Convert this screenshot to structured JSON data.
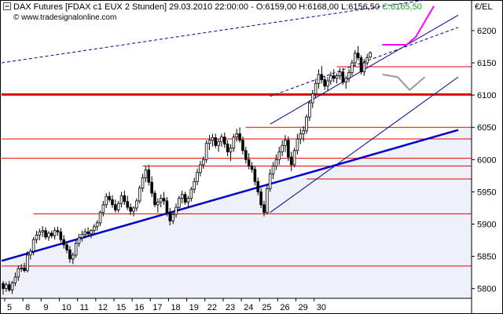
{
  "header": {
    "instrument": "DAX Futures [FDAX c1 EUX  2 Stunden]",
    "date_time": "29.03.2010 22:00:00",
    "ohlc": "- O:6159,00 H:6168,00 L:6156,50",
    "last": "C:6165,50",
    "source": "© www.tradesignalonline.com",
    "unit": "€/EL"
  },
  "colors": {
    "price": "#000000",
    "support_red": "#e00000",
    "trend_blue": "#0000cc",
    "trend_blue_thin": "#000099",
    "projection_magenta": "#ff00ff",
    "projection_gray": "#999999",
    "fill_band": "#eef0fa",
    "last_price_green": "#1a9e1a"
  },
  "chart_data": {
    "type": "candlestick",
    "x_tick_labels": [
      "5",
      "8",
      "9",
      "10",
      "11",
      "12",
      "15",
      "16",
      "17",
      "18",
      "19",
      "22",
      "23",
      "24",
      "25",
      "26",
      "29",
      "30"
    ],
    "y_ticks": [
      5800,
      5850,
      5900,
      5950,
      6000,
      6050,
      6100,
      6150,
      6200
    ],
    "ylim": [
      5785,
      6245
    ],
    "y_axis_side": "right",
    "grid": false,
    "bars_per_day": 6,
    "candles": [
      [
        5808,
        5812,
        5791,
        5800
      ],
      [
        5800,
        5810,
        5795,
        5806
      ],
      [
        5806,
        5812,
        5795,
        5798
      ],
      [
        5798,
        5812,
        5792,
        5809
      ],
      [
        5809,
        5825,
        5804,
        5818
      ],
      [
        5818,
        5836,
        5812,
        5831
      ],
      [
        5831,
        5838,
        5826,
        5832
      ],
      [
        5832,
        5840,
        5825,
        5828
      ],
      [
        5828,
        5858,
        5825,
        5852
      ],
      [
        5852,
        5862,
        5845,
        5858
      ],
      [
        5858,
        5880,
        5852,
        5876
      ],
      [
        5876,
        5890,
        5870,
        5883
      ],
      [
        5883,
        5893,
        5875,
        5888
      ],
      [
        5888,
        5897,
        5880,
        5890
      ],
      [
        5890,
        5895,
        5876,
        5880
      ],
      [
        5880,
        5889,
        5874,
        5886
      ],
      [
        5886,
        5890,
        5878,
        5882
      ],
      [
        5882,
        5895,
        5876,
        5890
      ],
      [
        5890,
        5896,
        5882,
        5888
      ],
      [
        5888,
        5894,
        5872,
        5876
      ],
      [
        5876,
        5883,
        5862,
        5868
      ],
      [
        5868,
        5872,
        5855,
        5860
      ],
      [
        5860,
        5866,
        5840,
        5846
      ],
      [
        5846,
        5856,
        5838,
        5852
      ],
      [
        5852,
        5875,
        5848,
        5870
      ],
      [
        5870,
        5885,
        5865,
        5879
      ],
      [
        5879,
        5890,
        5873,
        5884
      ],
      [
        5884,
        5893,
        5878,
        5888
      ],
      [
        5888,
        5895,
        5881,
        5885
      ],
      [
        5885,
        5892,
        5878,
        5890
      ],
      [
        5890,
        5900,
        5885,
        5896
      ],
      [
        5896,
        5906,
        5890,
        5902
      ],
      [
        5902,
        5921,
        5897,
        5918
      ],
      [
        5918,
        5936,
        5912,
        5930
      ],
      [
        5930,
        5948,
        5925,
        5943
      ],
      [
        5943,
        5950,
        5934,
        5938
      ],
      [
        5938,
        5945,
        5925,
        5930
      ],
      [
        5930,
        5938,
        5918,
        5922
      ],
      [
        5922,
        5936,
        5918,
        5932
      ],
      [
        5932,
        5950,
        5926,
        5944
      ],
      [
        5944,
        5952,
        5930,
        5935
      ],
      [
        5935,
        5944,
        5922,
        5926
      ],
      [
        5926,
        5932,
        5914,
        5920
      ],
      [
        5920,
        5928,
        5912,
        5925
      ],
      [
        5925,
        5940,
        5920,
        5936
      ],
      [
        5936,
        5960,
        5932,
        5956
      ],
      [
        5956,
        5978,
        5950,
        5972
      ],
      [
        5972,
        5990,
        5965,
        5984
      ],
      [
        5984,
        5992,
        5960,
        5965
      ],
      [
        5965,
        5974,
        5942,
        5948
      ],
      [
        5948,
        5952,
        5926,
        5930
      ],
      [
        5930,
        5940,
        5918,
        5934
      ],
      [
        5934,
        5946,
        5926,
        5940
      ],
      [
        5940,
        5950,
        5930,
        5936
      ],
      [
        5936,
        5942,
        5912,
        5918
      ],
      [
        5918,
        5925,
        5898,
        5905
      ],
      [
        5905,
        5920,
        5900,
        5915
      ],
      [
        5915,
        5932,
        5910,
        5926
      ],
      [
        5926,
        5944,
        5920,
        5940
      ],
      [
        5940,
        5952,
        5932,
        5946
      ],
      [
        5946,
        5950,
        5930,
        5934
      ],
      [
        5934,
        5944,
        5926,
        5940
      ],
      [
        5940,
        5958,
        5935,
        5954
      ],
      [
        5954,
        5972,
        5948,
        5966
      ],
      [
        5966,
        5986,
        5960,
        5980
      ],
      [
        5980,
        5998,
        5974,
        5992
      ],
      [
        5992,
        6005,
        5986,
        6000
      ],
      [
        6000,
        6030,
        5995,
        6025
      ],
      [
        6025,
        6038,
        6015,
        6030
      ],
      [
        6030,
        6040,
        6020,
        6034
      ],
      [
        6034,
        6040,
        6018,
        6022
      ],
      [
        6022,
        6032,
        6012,
        6028
      ],
      [
        6028,
        6040,
        6020,
        6035
      ],
      [
        6035,
        6042,
        6018,
        6024
      ],
      [
        6024,
        6030,
        6005,
        6012
      ],
      [
        6012,
        6024,
        5998,
        6018
      ],
      [
        6018,
        6040,
        6012,
        6035
      ],
      [
        6035,
        6048,
        6028,
        6040
      ],
      [
        6040,
        6050,
        6026,
        6030
      ],
      [
        6030,
        6036,
        6008,
        6014
      ],
      [
        6014,
        6020,
        5994,
        6000
      ],
      [
        6000,
        6010,
        5985,
        5990
      ],
      [
        5990,
        5996,
        5980,
        5985
      ],
      [
        5985,
        5990,
        5960,
        5966
      ],
      [
        5966,
        5972,
        5945,
        5950
      ],
      [
        5950,
        5956,
        5925,
        5930
      ],
      [
        5930,
        5936,
        5912,
        5918
      ],
      [
        5918,
        5960,
        5915,
        5955
      ],
      [
        5955,
        5985,
        5950,
        5978
      ],
      [
        5978,
        5996,
        5970,
        5990
      ],
      [
        5990,
        6008,
        5984,
        6000
      ],
      [
        6000,
        6020,
        5992,
        6012
      ],
      [
        6012,
        6030,
        6005,
        6022
      ],
      [
        6022,
        6038,
        6012,
        6030
      ],
      [
        6030,
        6036,
        5998,
        6004
      ],
      [
        6004,
        6012,
        5982,
        5992
      ],
      [
        5992,
        6018,
        5988,
        6014
      ],
      [
        6014,
        6040,
        6008,
        6032
      ],
      [
        6032,
        6048,
        6024,
        6040
      ],
      [
        6040,
        6052,
        6028,
        6045
      ],
      [
        6045,
        6070,
        6040,
        6066
      ],
      [
        6066,
        6092,
        6060,
        6088
      ],
      [
        6088,
        6108,
        6080,
        6102
      ],
      [
        6102,
        6125,
        6095,
        6118
      ],
      [
        6118,
        6140,
        6110,
        6132
      ],
      [
        6132,
        6145,
        6118,
        6124
      ],
      [
        6124,
        6130,
        6108,
        6114
      ],
      [
        6114,
        6128,
        6106,
        6122
      ],
      [
        6122,
        6136,
        6116,
        6130
      ],
      [
        6130,
        6140,
        6120,
        6126
      ],
      [
        6126,
        6134,
        6118,
        6130
      ],
      [
        6130,
        6142,
        6124,
        6136
      ],
      [
        6136,
        6142,
        6116,
        6120
      ],
      [
        6120,
        6130,
        6110,
        6126
      ],
      [
        6126,
        6140,
        6120,
        6135
      ],
      [
        6135,
        6155,
        6130,
        6150
      ],
      [
        6150,
        6170,
        6144,
        6165
      ],
      [
        6165,
        6176,
        6154,
        6158
      ],
      [
        6158,
        6162,
        6132,
        6136
      ],
      [
        6136,
        6156,
        6130,
        6150
      ],
      [
        6150,
        6164,
        6146,
        6158
      ],
      [
        6159,
        6168,
        6156.5,
        6165.5
      ]
    ],
    "annotations": {
      "horizontal_lines": [
        {
          "price": 6144,
          "style": "thin",
          "color": "support_red",
          "x_from_bar": 110
        },
        {
          "price": 6101,
          "style": "thick",
          "color": "support_red",
          "x_from_bar": 0
        },
        {
          "price": 6050,
          "style": "thin",
          "color": "support_red",
          "x_from_bar": 80
        },
        {
          "price": 6032,
          "style": "thin",
          "color": "support_red",
          "x_from_bar": 0
        },
        {
          "price": 6002,
          "style": "thin",
          "color": "support_red",
          "x_from_bar": 0
        },
        {
          "price": 5990,
          "style": "thin",
          "color": "support_red",
          "x_from_bar": 46
        },
        {
          "price": 5970,
          "style": "thin",
          "color": "support_red",
          "x_from_bar": 100
        },
        {
          "price": 5916,
          "style": "thin",
          "color": "support_red",
          "x_from_bar": 10
        },
        {
          "price": 5835,
          "style": "thin",
          "color": "support_red",
          "x_from_bar": 0
        }
      ],
      "trend_lines": [
        {
          "from": [
            -0.5,
            5843
          ],
          "to": [
            150,
            6046
          ],
          "style": "thick",
          "color": "trend_blue"
        },
        {
          "from": [
            88,
            6055
          ],
          "to": [
            150,
            6224
          ],
          "style": "thin",
          "color": "trend_blue_thin"
        },
        {
          "from": [
            88,
            5918
          ],
          "to": [
            150,
            6128
          ],
          "style": "thin",
          "color": "trend_blue_thin"
        },
        {
          "from": [
            88,
            6098
          ],
          "to": [
            150,
            6205
          ],
          "style": "dashed",
          "color": "trend_blue_thin"
        },
        {
          "from": [
            -0.5,
            6150
          ],
          "to": [
            140,
            6248
          ],
          "style": "dashed",
          "color": "trend_blue_thin"
        }
      ],
      "projections": [
        {
          "points": [
            [
              125,
              6178
            ],
            [
              133,
              6178
            ],
            [
              136,
              6190
            ],
            [
              142,
              6238
            ]
          ],
          "color": "projection_magenta"
        },
        {
          "points": [
            [
              125,
              6132
            ],
            [
              130,
              6128
            ],
            [
              134,
              6108
            ],
            [
              139,
              6128
            ]
          ],
          "color": "projection_gray"
        }
      ]
    }
  }
}
